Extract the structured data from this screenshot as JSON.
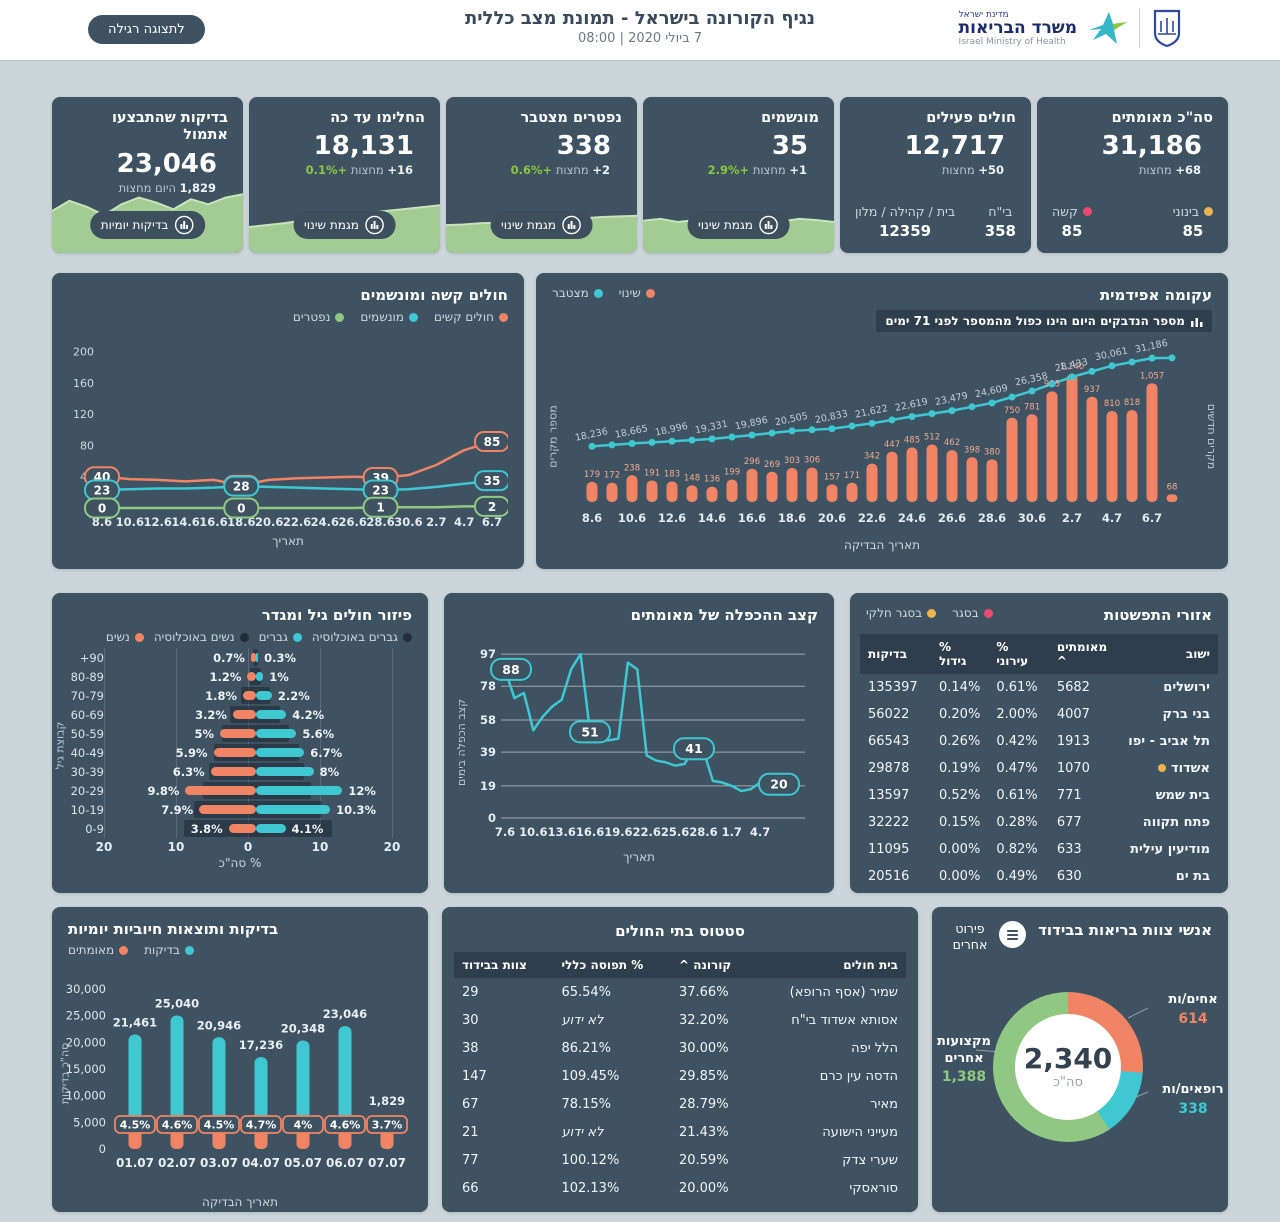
{
  "header": {
    "view_button": "לתצוגה רגילה",
    "title": "נגיף הקורונה בישראל - תמונת מצב כללית",
    "date": "7 ביולי 2020 | 08:00",
    "ministry_he_small": "מדינת ישראל",
    "ministry_he": "משרד הבריאות",
    "ministry_en": "Israel Ministry of Health"
  },
  "colors": {
    "orange": "#f08465",
    "teal": "#3fc8d2",
    "green": "#90c883",
    "pink": "#ea4a6e",
    "yellow": "#eab54e",
    "green_text": "#8dc63f",
    "card": "#3e5262",
    "area_green": "#a2cc93"
  },
  "kpis": [
    {
      "title": "סה\"כ מאומתים",
      "value": "31,186",
      "change_num": "68+",
      "change_label": "מחצות",
      "type": "stats",
      "stats": [
        {
          "label": "בינוני",
          "value": "85",
          "dot": "#eab54e"
        },
        {
          "label": "קשה",
          "value": "85",
          "dot": "#ea4a6e"
        }
      ]
    },
    {
      "title": "חולים פעילים",
      "value": "12,717",
      "change_num": "50+",
      "change_label": "מחצות",
      "type": "stats",
      "stats": [
        {
          "label": "בי\"ח",
          "value": "358",
          "dot": ""
        },
        {
          "label": "בית / קהילה / מלון",
          "value": "12359",
          "dot": ""
        }
      ]
    },
    {
      "title": "מונשמים",
      "value": "35",
      "change_num": "1+",
      "change_label": "מחצות",
      "pct": "+2.9%",
      "type": "spark",
      "button": "מגמת שינוי",
      "spark_h": 62,
      "spark": [
        0.52,
        0.55,
        0.5,
        0.53,
        0.57,
        0.52,
        0.5,
        0.54,
        0.51,
        0.55,
        0.53,
        0.5
      ]
    },
    {
      "title": "נפטרים מצטבר",
      "value": "338",
      "change_num": "2+",
      "change_label": "מחצות",
      "pct": "+0.6%",
      "type": "spark",
      "button": "מגמת שינוי",
      "spark_h": 62,
      "spark": [
        0.45,
        0.46,
        0.48,
        0.49,
        0.5,
        0.52,
        0.53,
        0.55,
        0.56,
        0.58,
        0.59,
        0.6
      ]
    },
    {
      "title": "החלימו עד כה",
      "value": "18,131",
      "change_num": "16+",
      "change_label": "מחצות",
      "pct": "+0.1%",
      "type": "spark",
      "button": "מגמת שינוי",
      "spark_h": 62,
      "spark": [
        0.42,
        0.45,
        0.48,
        0.52,
        0.55,
        0.58,
        0.62,
        0.65,
        0.68,
        0.71,
        0.74,
        0.77
      ]
    },
    {
      "title": "בדיקות שהתבצעו אתמול",
      "value": "23,046",
      "change_num": "1,829",
      "change_label": "היום מחצות",
      "type": "spark",
      "button": "בדיקות יומיות",
      "spark_h": 84,
      "spark": [
        0.5,
        0.62,
        0.55,
        0.45,
        0.58,
        0.66,
        0.6,
        0.52,
        0.64,
        0.58,
        0.66,
        0.7
      ]
    }
  ],
  "chart_data": [
    {
      "id": "severe",
      "type": "line",
      "title": "חולים קשה ומונשמים",
      "legend": [
        {
          "label": "חולים קשים",
          "color": "#f08465"
        },
        {
          "label": "מונשמים",
          "color": "#3fc8d2"
        },
        {
          "label": "נפטרים",
          "color": "#90c883"
        }
      ],
      "xlabel": "תאריך",
      "ylim": [
        0,
        220
      ],
      "y_ticks": [
        200,
        160,
        120,
        80,
        40
      ],
      "x": [
        "8.6",
        "10.6",
        "12.6",
        "14.6",
        "16.6",
        "18.6",
        "20.6",
        "22.6",
        "24.6",
        "26.6",
        "28.6",
        "30.6",
        "2.7",
        "4.7",
        "6.7"
      ],
      "series": [
        {
          "name": "חולים קשים",
          "color": "#f08465",
          "values": [
            40,
            37,
            36,
            34,
            36,
            29,
            36,
            38,
            39,
            40,
            39,
            42,
            55,
            74,
            85
          ],
          "labels": {
            "0": "40",
            "5": "29",
            "10": "39",
            "14": "85"
          }
        },
        {
          "name": "מונשמים",
          "color": "#3fc8d2",
          "values": [
            23,
            24,
            25,
            25,
            26,
            28,
            27,
            26,
            25,
            24,
            23,
            24,
            27,
            31,
            35
          ],
          "labels": {
            "0": "23",
            "5": "28",
            "10": "23",
            "14": "35"
          }
        },
        {
          "name": "נפטרים",
          "color": "#90c883",
          "values": [
            0,
            0,
            0,
            0,
            0,
            0,
            0,
            0,
            0,
            0,
            1,
            1,
            1,
            2,
            2
          ],
          "labels": {
            "0": "0",
            "5": "0",
            "10": "1",
            "14": "2"
          }
        }
      ]
    },
    {
      "id": "epidemic",
      "type": "bar+line",
      "title": "עקומה אפידמית",
      "note": "מספר הנדבקים היום הינו כפול מהמספר לפני 71 ימים",
      "legend": [
        {
          "label": "שינוי",
          "color": "#f08465"
        },
        {
          "label": "מצטבר",
          "color": "#3fc8d2"
        }
      ],
      "ylabel_right": "מקרים חדשים",
      "ylabel_left": "מספר מקרים",
      "xlabel": "תאריך הבדיקה",
      "x_ticks": [
        "8.6",
        "10.6",
        "12.6",
        "14.6",
        "16.6",
        "18.6",
        "20.6",
        "22.6",
        "24.6",
        "26.6",
        "28.6",
        "30.6",
        "2.7",
        "4.7",
        "6.7"
      ],
      "bars": [
        179,
        172,
        238,
        191,
        183,
        148,
        136,
        199,
        296,
        269,
        303,
        306,
        157,
        171,
        342,
        447,
        485,
        512,
        462,
        398,
        380,
        750,
        781,
        985,
        1140,
        937,
        810,
        818,
        1057,
        68
      ],
      "bar_labels": [
        "179",
        "172",
        "238",
        "191",
        "183",
        "148",
        "136",
        "199",
        "296",
        "269",
        "303",
        "306",
        "157",
        "171",
        "342",
        "447",
        "485",
        "512",
        "462",
        "398",
        "380",
        "750",
        "781",
        "985",
        "1,140",
        "937",
        "810",
        "818",
        "1,057",
        "68"
      ],
      "line_values": [
        18236,
        18665,
        18996,
        19331,
        19896,
        20505,
        20833,
        21622,
        22619,
        23479,
        24609,
        26358,
        28433,
        30061,
        31186
      ],
      "line_labels": [
        "18,236",
        "18,665",
        "18,996",
        "19,331",
        "19,896",
        "20,505",
        "20,833",
        "21,622",
        "22,619",
        "23,479",
        "24,609",
        "26,358",
        "28,433",
        "30,061",
        "31,186"
      ]
    },
    {
      "id": "pyramid",
      "type": "bar",
      "title": "פיזור חולים גיל ומגדר",
      "legend": [
        {
          "label": "גברים באוכלוסיה",
          "color": "#222e39"
        },
        {
          "label": "גברים",
          "color": "#3fc8d2"
        },
        {
          "label": "נשים באוכלוסיה",
          "color": "#222e39"
        },
        {
          "label": "נשים",
          "color": "#f08465"
        }
      ],
      "ylabel": "קבוצת גיל",
      "xlabel": "% סה\"כ",
      "x_ticks": [
        "20",
        "10",
        "0",
        "10",
        "20"
      ],
      "xlim": 20,
      "categories": [
        "+90",
        "80-89",
        "70-79",
        "60-69",
        "50-59",
        "40-49",
        "30-39",
        "20-29",
        "10-19",
        "0-9"
      ],
      "women": [
        0.7,
        1.2,
        1.8,
        3.2,
        5,
        5.9,
        6.3,
        9.8,
        7.9,
        3.8
      ],
      "men": [
        0.3,
        1,
        2.2,
        4.2,
        5.6,
        6.7,
        8,
        12,
        10.3,
        4.1
      ],
      "women_labels": [
        "0.7%",
        "1.2%",
        "1.8%",
        "3.2%",
        "5%",
        "5.9%",
        "6.3%",
        "9.8%",
        "7.9%",
        "3.8%"
      ],
      "men_labels": [
        "0.3%",
        "1%",
        "2.2%",
        "4.2%",
        "5.6%",
        "6.7%",
        "8%",
        "12%",
        "10.3%",
        "4.1%"
      ],
      "women_pop": [
        0.4,
        0.9,
        2.1,
        3.6,
        4.7,
        5.9,
        6.5,
        7.3,
        8.6,
        10.0
      ],
      "men_pop": [
        0.3,
        0.7,
        1.9,
        3.4,
        4.6,
        6.0,
        6.6,
        7.7,
        9.1,
        10.6
      ]
    },
    {
      "id": "doubling",
      "type": "line",
      "title": "קצב ההכפלה של מאומתים",
      "ylabel": "קצב הכפלה בימים",
      "xlabel": "תאריך",
      "y_ticks": [
        97,
        78,
        58,
        39,
        19,
        0
      ],
      "x_ticks": [
        "7.6",
        "10.6",
        "13.6",
        "16.6",
        "19.6",
        "22.6",
        "25.6",
        "28.6",
        "1.7",
        "4.7"
      ],
      "values": [
        88,
        71,
        74,
        52,
        60,
        66,
        70,
        88,
        97,
        51,
        46,
        46,
        47,
        92,
        88,
        37,
        34,
        33,
        31,
        32,
        41,
        40,
        22,
        21,
        19,
        16,
        17,
        21,
        19,
        20
      ],
      "callouts": [
        {
          "index": 0,
          "label": "88"
        },
        {
          "index": 9,
          "label": "51"
        },
        {
          "index": 20,
          "label": "41"
        },
        {
          "index": 29,
          "label": "20"
        }
      ]
    },
    {
      "id": "tests",
      "type": "bar",
      "title": "בדיקות ותוצאות חיוביות יומיות",
      "legend": [
        {
          "label": "בדיקות",
          "color": "#3fc8d2"
        },
        {
          "label": "מאומתים",
          "color": "#f08465"
        }
      ],
      "ylabel": "סה\"כ בדיקות",
      "xlabel": "תאריך הבדיקה",
      "y_ticks": [
        "30,000",
        "25,000",
        "20,000",
        "15,000",
        "10,000",
        "5,000",
        "0"
      ],
      "ylim": [
        0,
        30000
      ],
      "categories": [
        "01.07",
        "02.07",
        "03.07",
        "04.07",
        "05.07",
        "06.07",
        "07.07"
      ],
      "values": [
        21461,
        25040,
        20946,
        17236,
        20348,
        23046,
        1829
      ],
      "value_labels": [
        "21,461",
        "25,040",
        "20,946",
        "17,236",
        "20,348",
        "23,046",
        "1,829"
      ],
      "positive_pct": [
        "4.5%",
        "4.6%",
        "4.5%",
        "4.7%",
        "4%",
        "4.6%",
        "3.7%"
      ]
    },
    {
      "id": "staff",
      "type": "pie",
      "title": "אנשי צוות בריאות בבידוד",
      "button": "פירוט אחרים",
      "total": "2,340",
      "total_label": "סה\"כ",
      "segments": [
        {
          "label": "אחים/ות",
          "value": 614,
          "display": "614",
          "color": "#f08465"
        },
        {
          "label": "רופאים/ות",
          "value": 338,
          "display": "338",
          "color": "#3fc8d2"
        },
        {
          "label": "מקצועות אחרים",
          "value": 1388,
          "display": "1,388",
          "color": "#90c883"
        }
      ]
    }
  ],
  "spread_table": {
    "title": "אזורי התפשטות",
    "legend": [
      {
        "label": "בסגר",
        "color": "#ea4a6e"
      },
      {
        "label": "בסגר חלקי",
        "color": "#eab54e"
      }
    ],
    "columns": [
      "ישוב",
      "מאומתים ^",
      "% עירוני",
      "% גידול",
      "בדיקות"
    ],
    "rows": [
      {
        "city": "ירושלים",
        "confirmed": "5682",
        "urban": "0.61%",
        "growth": "0.14%",
        "tests": "135397",
        "marker": ""
      },
      {
        "city": "בני ברק",
        "confirmed": "4007",
        "urban": "2.00%",
        "growth": "0.20%",
        "tests": "56022",
        "marker": ""
      },
      {
        "city": "תל אביב - יפו",
        "confirmed": "1913",
        "urban": "0.42%",
        "growth": "0.26%",
        "tests": "66543",
        "marker": ""
      },
      {
        "city": "אשדוד",
        "confirmed": "1070",
        "urban": "0.47%",
        "growth": "0.19%",
        "tests": "29878",
        "marker": "#eab54e"
      },
      {
        "city": "בית שמש",
        "confirmed": "771",
        "urban": "0.61%",
        "growth": "0.52%",
        "tests": "13597",
        "marker": ""
      },
      {
        "city": "פתח תקווה",
        "confirmed": "677",
        "urban": "0.28%",
        "growth": "0.15%",
        "tests": "32222",
        "marker": ""
      },
      {
        "city": "מודיעין עילית",
        "confirmed": "633",
        "urban": "0.82%",
        "growth": "0.00%",
        "tests": "11095",
        "marker": ""
      },
      {
        "city": "בת ים",
        "confirmed": "630",
        "urban": "0.49%",
        "growth": "0.00%",
        "tests": "20516",
        "marker": ""
      }
    ]
  },
  "hospitals_table": {
    "title": "סטטוס בתי החולים",
    "columns": [
      "בית חולים",
      "קורונה ^",
      "% תפוסה כללי",
      "צוות בבידוד"
    ],
    "rows": [
      {
        "name": "שמיר (אסף הרופא)",
        "corona": "37.66%",
        "occupancy": "65.54%",
        "staff": "29"
      },
      {
        "name": "אסותא אשדוד בי\"ח",
        "corona": "32.20%",
        "occupancy": "לא ידוע",
        "staff": "30"
      },
      {
        "name": "הלל יפה",
        "corona": "30.00%",
        "occupancy": "86.21%",
        "staff": "38"
      },
      {
        "name": "הדסה עין כרם",
        "corona": "29.85%",
        "occupancy": "109.45%",
        "staff": "147"
      },
      {
        "name": "מאיר",
        "corona": "28.79%",
        "occupancy": "78.15%",
        "staff": "67"
      },
      {
        "name": "מעייני הישועה",
        "corona": "21.43%",
        "occupancy": "לא ידוע",
        "staff": "21"
      },
      {
        "name": "שערי צדק",
        "corona": "20.59%",
        "occupancy": "100.12%",
        "staff": "77"
      },
      {
        "name": "סוראסקי",
        "corona": "20.00%",
        "occupancy": "102.13%",
        "staff": "66"
      }
    ]
  }
}
